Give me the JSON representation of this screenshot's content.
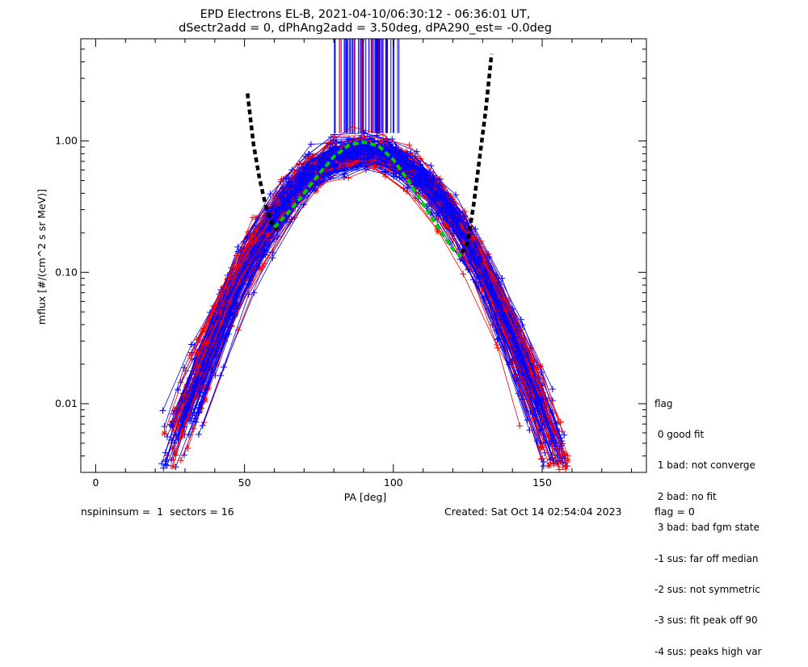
{
  "chart_data": {
    "type": "scatter",
    "title_line1": "EPD Electrons EL-B, 2021-04-10/06:30:12 - 06:36:01 UT,",
    "title_line2": "dSectr2add = 0, dPhAng2add = 3.50deg, dPA290_est=  -0.0deg",
    "xlabel": "PA [deg]",
    "ylabel": "mflux [#/(cm^2 s sr MeV)]",
    "xlim": [
      -5,
      185
    ],
    "ylim": [
      0.003,
      6.0
    ],
    "yscale": "log",
    "x_ticks": [
      0,
      50,
      100,
      150
    ],
    "x_tick_labels": [
      "0",
      "50",
      "100",
      "150"
    ],
    "y_ticks": [
      0.01,
      0.1,
      1.0
    ],
    "y_tick_labels": [
      "0.01",
      "0.10",
      "1.00"
    ],
    "series": [
      {
        "color": "#0000ff",
        "marker": "+",
        "style": "line+marker"
      },
      {
        "color": "#ff0000",
        "marker": "*",
        "style": "line+marker"
      }
    ],
    "fit_curve": {
      "color": "#00cc00",
      "style": "dashed",
      "x": [
        60,
        65,
        70,
        75,
        80,
        85,
        90,
        95,
        100,
        105,
        110,
        115,
        120,
        123
      ],
      "y": [
        0.22,
        0.29,
        0.4,
        0.56,
        0.76,
        0.93,
        0.98,
        0.92,
        0.72,
        0.5,
        0.33,
        0.22,
        0.15,
        0.13
      ]
    },
    "bound_curve": {
      "color": "#000000",
      "style": "dashed",
      "x": [
        51,
        53,
        55,
        57,
        59,
        61,
        123,
        125,
        127,
        129,
        131,
        133
      ],
      "y": [
        2.3,
        0.95,
        0.52,
        0.33,
        0.24,
        0.21,
        0.14,
        0.17,
        0.33,
        0.75,
        1.7,
        4.6
      ]
    }
  },
  "legend": {
    "title": "flag",
    "items": [
      " 0 good fit",
      " 1 bad: not converge",
      " 2 bad: no fit",
      " 3 bad: bad fgm state",
      "-1 sus: far off median",
      "-2 sus: not symmetric",
      "-3 sus: fit peak off 90",
      "-4 sus: peaks high var"
    ]
  },
  "footer": {
    "left": "nspininsum =  1  sectors = 16",
    "center": "Created: Sat Oct 14 02:54:04 2023",
    "right": "flag = 0"
  }
}
